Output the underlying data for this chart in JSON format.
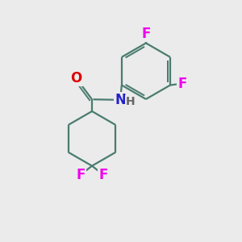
{
  "background_color": "#ebebeb",
  "bond_color": "#4a7c6f",
  "atom_colors": {
    "F": "#ee00ee",
    "O": "#dd0000",
    "N": "#2222cc",
    "H": "#555555"
  },
  "bond_lw": 1.6,
  "font_size": 12
}
